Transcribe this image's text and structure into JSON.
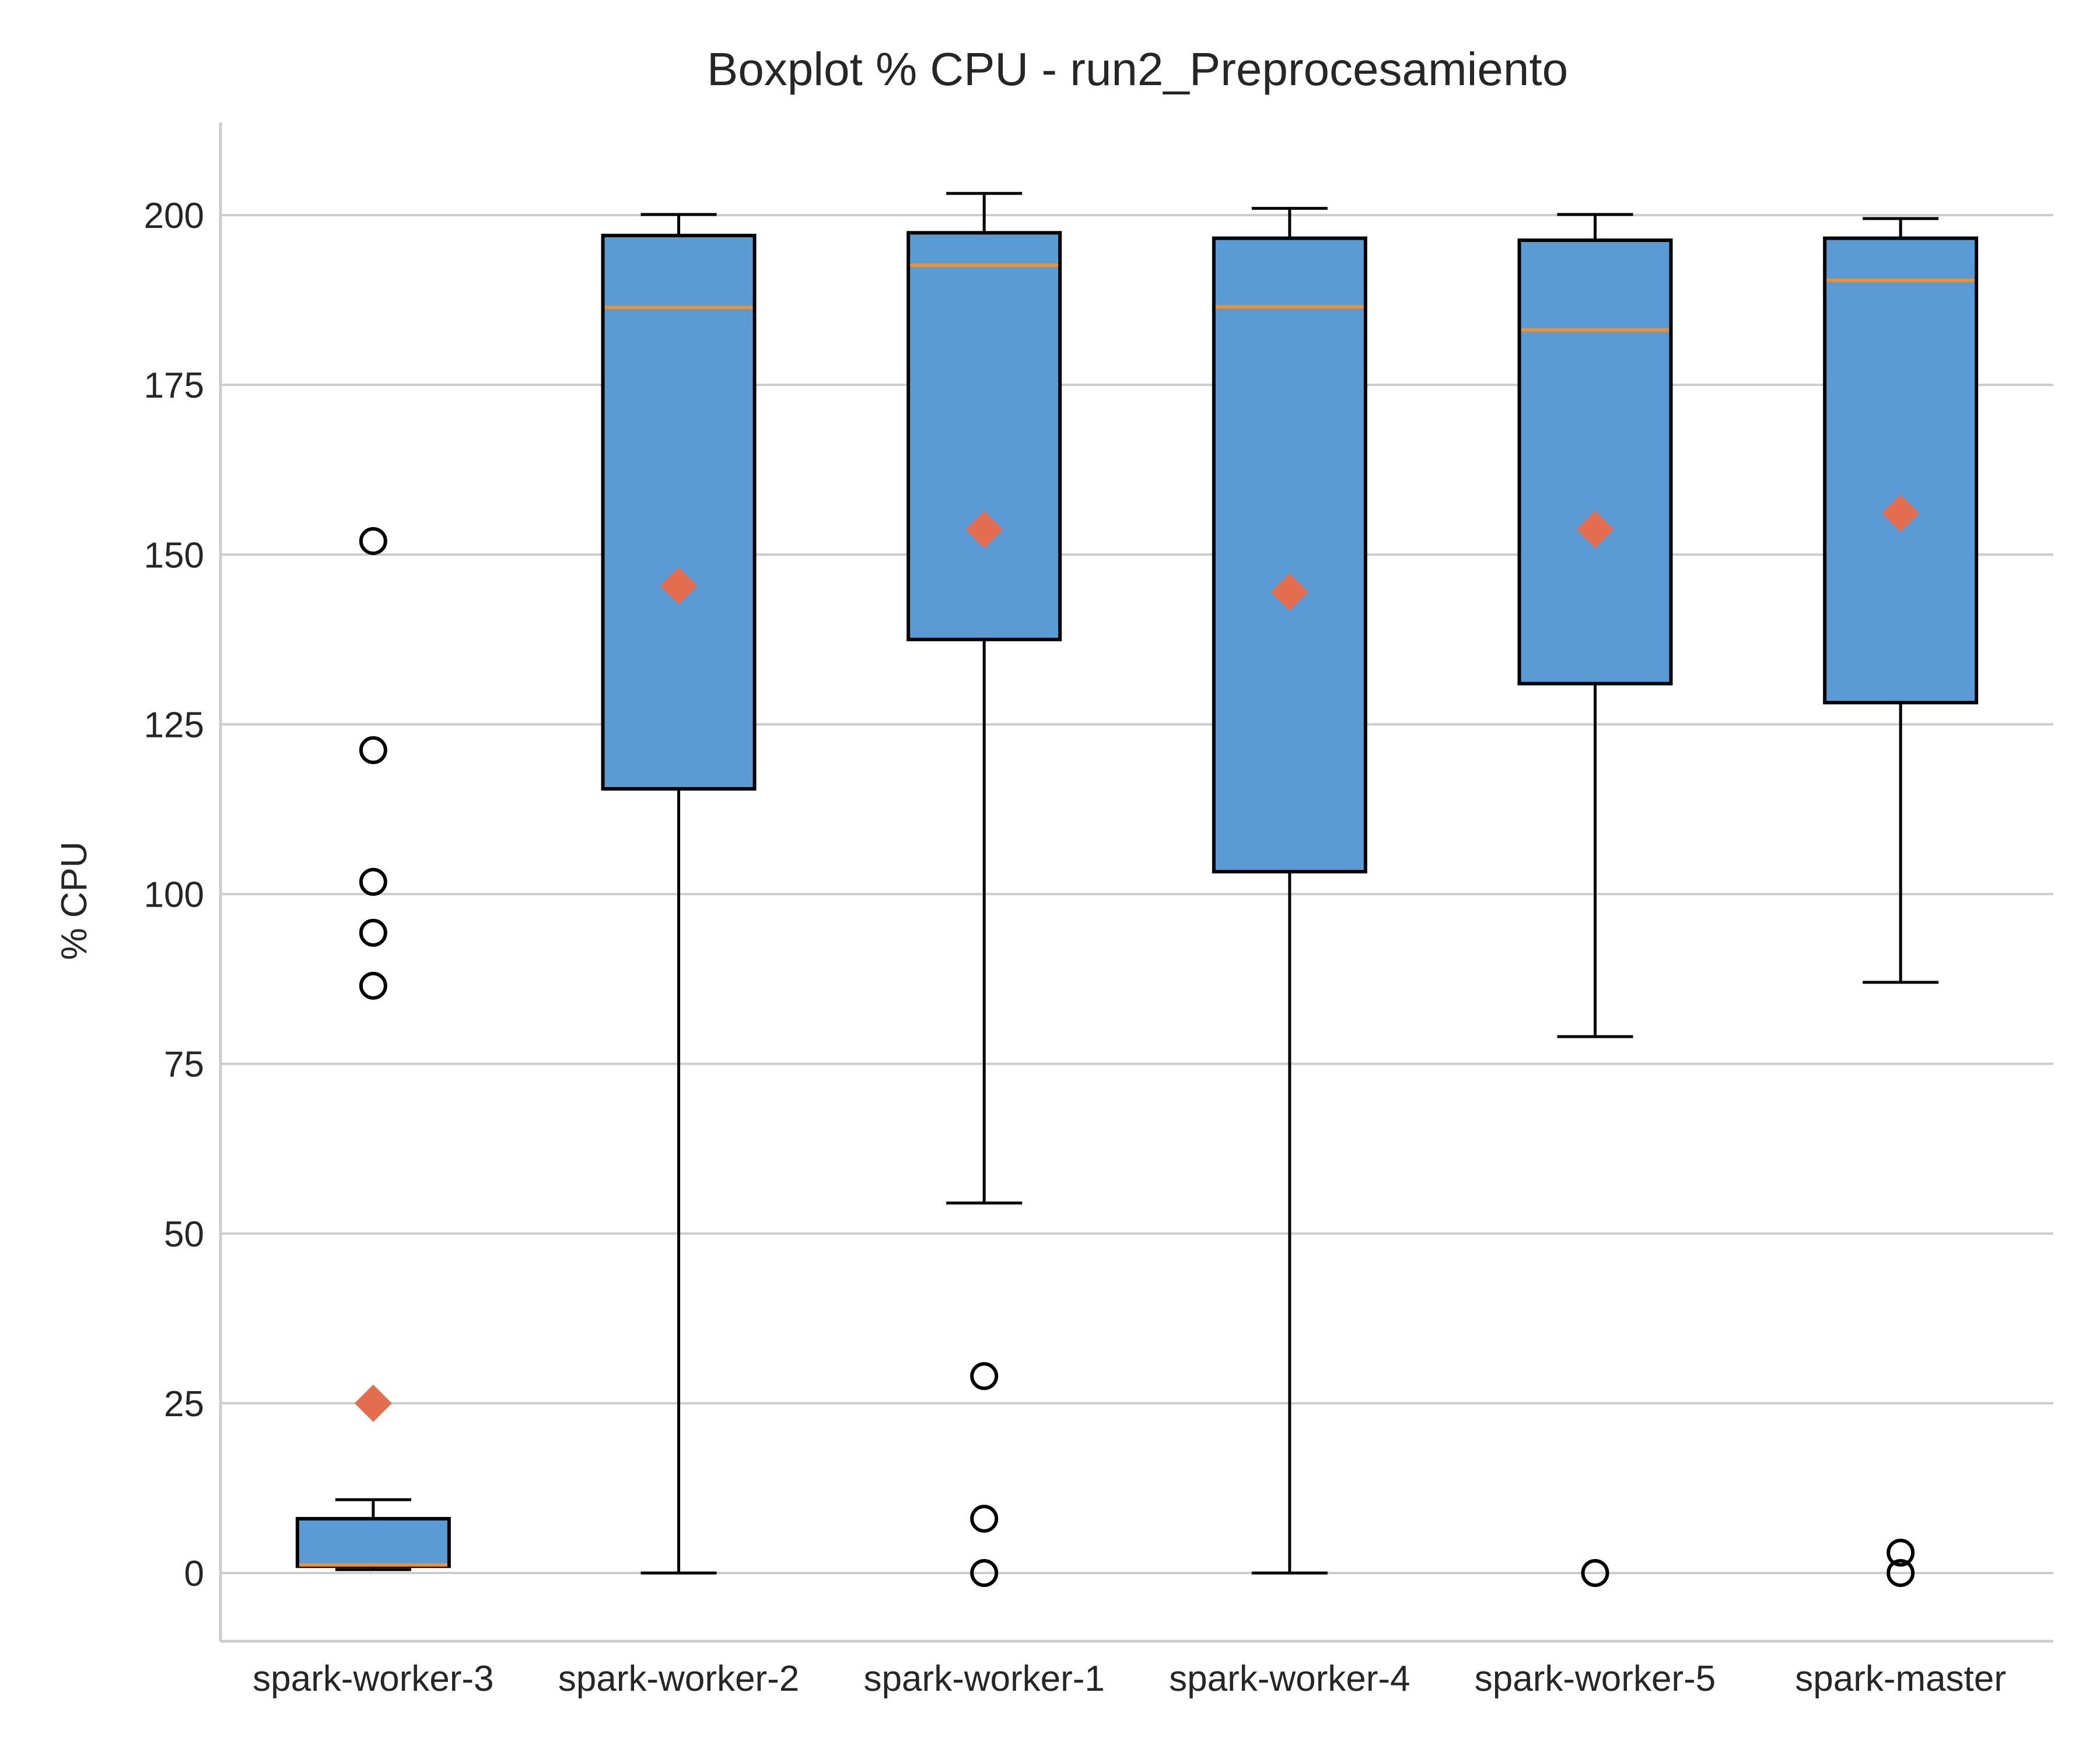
{
  "chart_data": {
    "type": "box",
    "title": "Boxplot % CPU - run2_Preprocesamiento",
    "xlabel": "",
    "ylabel": "% CPU",
    "ylim": [
      -10,
      213
    ],
    "yticks": [
      0,
      25,
      50,
      75,
      100,
      125,
      150,
      175,
      200
    ],
    "grid": "horizontal",
    "categories": [
      "spark-worker-3",
      "spark-worker-2",
      "spark-worker-1",
      "spark-worker-4",
      "spark-worker-5",
      "spark-master"
    ],
    "boxes": [
      {
        "whisker_low": 0.5,
        "q1": 1.0,
        "median": 1.2,
        "q3": 8.0,
        "whisker_high": 10.8,
        "mean": 25.0,
        "outliers": [
          86.5,
          94.3,
          101.8,
          121.2,
          152.0
        ]
      },
      {
        "whisker_low": 0.0,
        "q1": 115.5,
        "median": 186.4,
        "q3": 197.0,
        "whisker_high": 200.1,
        "mean": 145.4,
        "outliers": []
      },
      {
        "whisker_low": 54.5,
        "q1": 137.5,
        "median": 192.6,
        "q3": 197.4,
        "whisker_high": 203.2,
        "mean": 153.7,
        "outliers": [
          0.0,
          8.0,
          29.0
        ]
      },
      {
        "whisker_low": 0.0,
        "q1": 103.3,
        "median": 186.5,
        "q3": 196.6,
        "whisker_high": 201.0,
        "mean": 144.5,
        "outliers": []
      },
      {
        "whisker_low": 79.0,
        "q1": 131.0,
        "median": 183.1,
        "q3": 196.3,
        "whisker_high": 200.1,
        "mean": 153.7,
        "outliers": [
          0.0
        ]
      },
      {
        "whisker_low": 87.0,
        "q1": 128.2,
        "median": 190.4,
        "q3": 196.6,
        "whisker_high": 199.5,
        "mean": 156.1,
        "outliers": [
          0.0,
          3.0
        ]
      }
    ],
    "colors": {
      "box_fill": "#5b9bd5",
      "box_edge": "#000000",
      "median": "#f28e2b",
      "mean_marker": "#e46c4f",
      "grid": "#cccccc",
      "axis": "#cccccc",
      "text": "#262626"
    }
  }
}
